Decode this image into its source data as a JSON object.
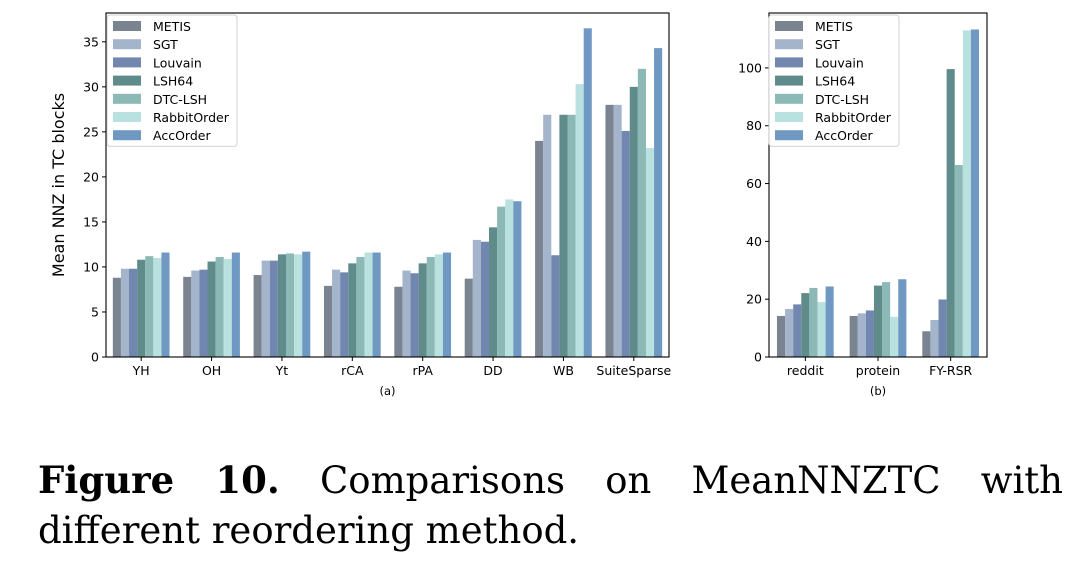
{
  "series_names": [
    "METIS",
    "SGT",
    "Louvain",
    "LSH64",
    "DTC-LSH",
    "RabbitOrder",
    "AccOrder"
  ],
  "series_colors": [
    "#7a8390",
    "#a4b4cb",
    "#7187b0",
    "#5f8c8a",
    "#8cb8b5",
    "#b9e1df",
    "#6f98c2"
  ],
  "chart_data": [
    {
      "type": "bar",
      "ylabel": "Mean NNZ in TC blocks",
      "xlabel": "(a)",
      "ylim": [
        0,
        38.2
      ],
      "yticks": [
        0,
        5,
        10,
        15,
        20,
        25,
        30,
        35
      ],
      "legend": "top-left",
      "grid": false,
      "categories": [
        "YH",
        "OH",
        "Yt",
        "rCA",
        "rPA",
        "DD",
        "WB",
        "SuiteSparse"
      ],
      "series": [
        {
          "name": "METIS",
          "values": [
            8.8,
            8.9,
            9.1,
            7.9,
            7.8,
            8.7,
            24.0,
            28.0
          ]
        },
        {
          "name": "SGT",
          "values": [
            9.8,
            9.6,
            10.7,
            9.7,
            9.6,
            13.0,
            26.9,
            28.0
          ]
        },
        {
          "name": "Louvain",
          "values": [
            9.8,
            9.7,
            10.7,
            9.4,
            9.3,
            12.8,
            11.3,
            25.1
          ]
        },
        {
          "name": "LSH64",
          "values": [
            10.8,
            10.6,
            11.4,
            10.4,
            10.4,
            14.4,
            26.9,
            30.0
          ]
        },
        {
          "name": "DTC-LSH",
          "values": [
            11.2,
            11.1,
            11.5,
            11.1,
            11.1,
            16.7,
            26.9,
            32.0
          ]
        },
        {
          "name": "RabbitOrder",
          "values": [
            11.0,
            10.9,
            11.4,
            11.6,
            11.4,
            17.5,
            30.3,
            23.2
          ]
        },
        {
          "name": "AccOrder",
          "values": [
            11.6,
            11.6,
            11.7,
            11.6,
            11.6,
            17.3,
            36.5,
            34.3
          ]
        }
      ]
    },
    {
      "type": "bar",
      "ylabel": "",
      "xlabel": "(b)",
      "ylim": [
        0,
        119
      ],
      "yticks": [
        0,
        20,
        40,
        60,
        80,
        100
      ],
      "legend": "top-left",
      "grid": false,
      "categories": [
        "reddit",
        "protein",
        "FY-RSR"
      ],
      "series": [
        {
          "name": "METIS",
          "values": [
            14.2,
            14.2,
            8.9
          ]
        },
        {
          "name": "SGT",
          "values": [
            16.6,
            15.1,
            12.8
          ]
        },
        {
          "name": "Louvain",
          "values": [
            18.2,
            16.1,
            19.9
          ]
        },
        {
          "name": "LSH64",
          "values": [
            22.1,
            24.7,
            99.6
          ]
        },
        {
          "name": "DTC-LSH",
          "values": [
            23.9,
            25.9,
            66.4
          ]
        },
        {
          "name": "RabbitOrder",
          "values": [
            19.0,
            13.9,
            113.0
          ]
        },
        {
          "name": "AccOrder",
          "values": [
            24.4,
            26.9,
            113.3
          ]
        }
      ]
    }
  ],
  "caption": {
    "label": "Figure 10.",
    "text": "Comparisons on MeanNNZTC with different reordering method."
  }
}
